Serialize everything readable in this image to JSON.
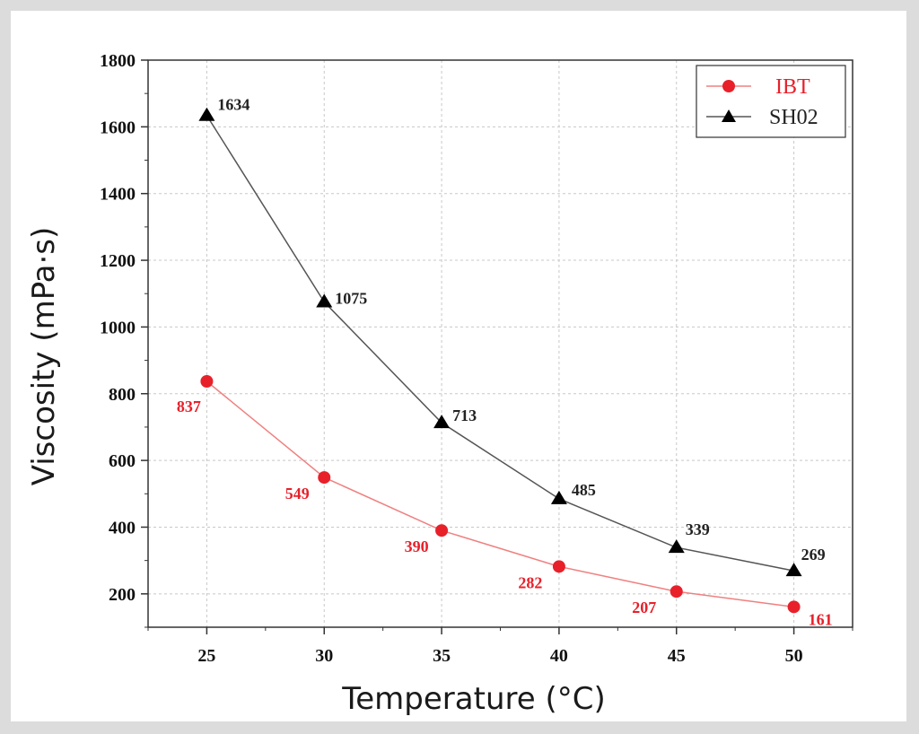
{
  "chart_data": {
    "type": "line",
    "xlabel": "Temperature (°C)",
    "ylabel": "Viscosity (mPa·s)",
    "x": [
      25,
      30,
      35,
      40,
      45,
      50
    ],
    "xticks": [
      25,
      30,
      35,
      40,
      45,
      50
    ],
    "yticks": [
      200,
      400,
      600,
      800,
      1000,
      1200,
      1400,
      1600,
      1800
    ],
    "ylim": [
      100,
      1800
    ],
    "xlim": [
      22.5,
      52.5
    ],
    "grid": true,
    "legend_position": "top-right",
    "series": [
      {
        "name": "IBT",
        "color": "#e8202a",
        "line_color": "#f08080",
        "marker": "circle",
        "values": [
          837,
          549,
          390,
          282,
          207,
          161
        ],
        "labels": [
          "837",
          "549",
          "390",
          "282",
          "207",
          "161"
        ]
      },
      {
        "name": "SH02",
        "color": "#000000",
        "line_color": "#555555",
        "marker": "triangle",
        "values": [
          1634,
          1075,
          713,
          485,
          339,
          269
        ],
        "labels": [
          "1634",
          "1075",
          "713",
          "485",
          "339",
          "269"
        ]
      }
    ]
  }
}
